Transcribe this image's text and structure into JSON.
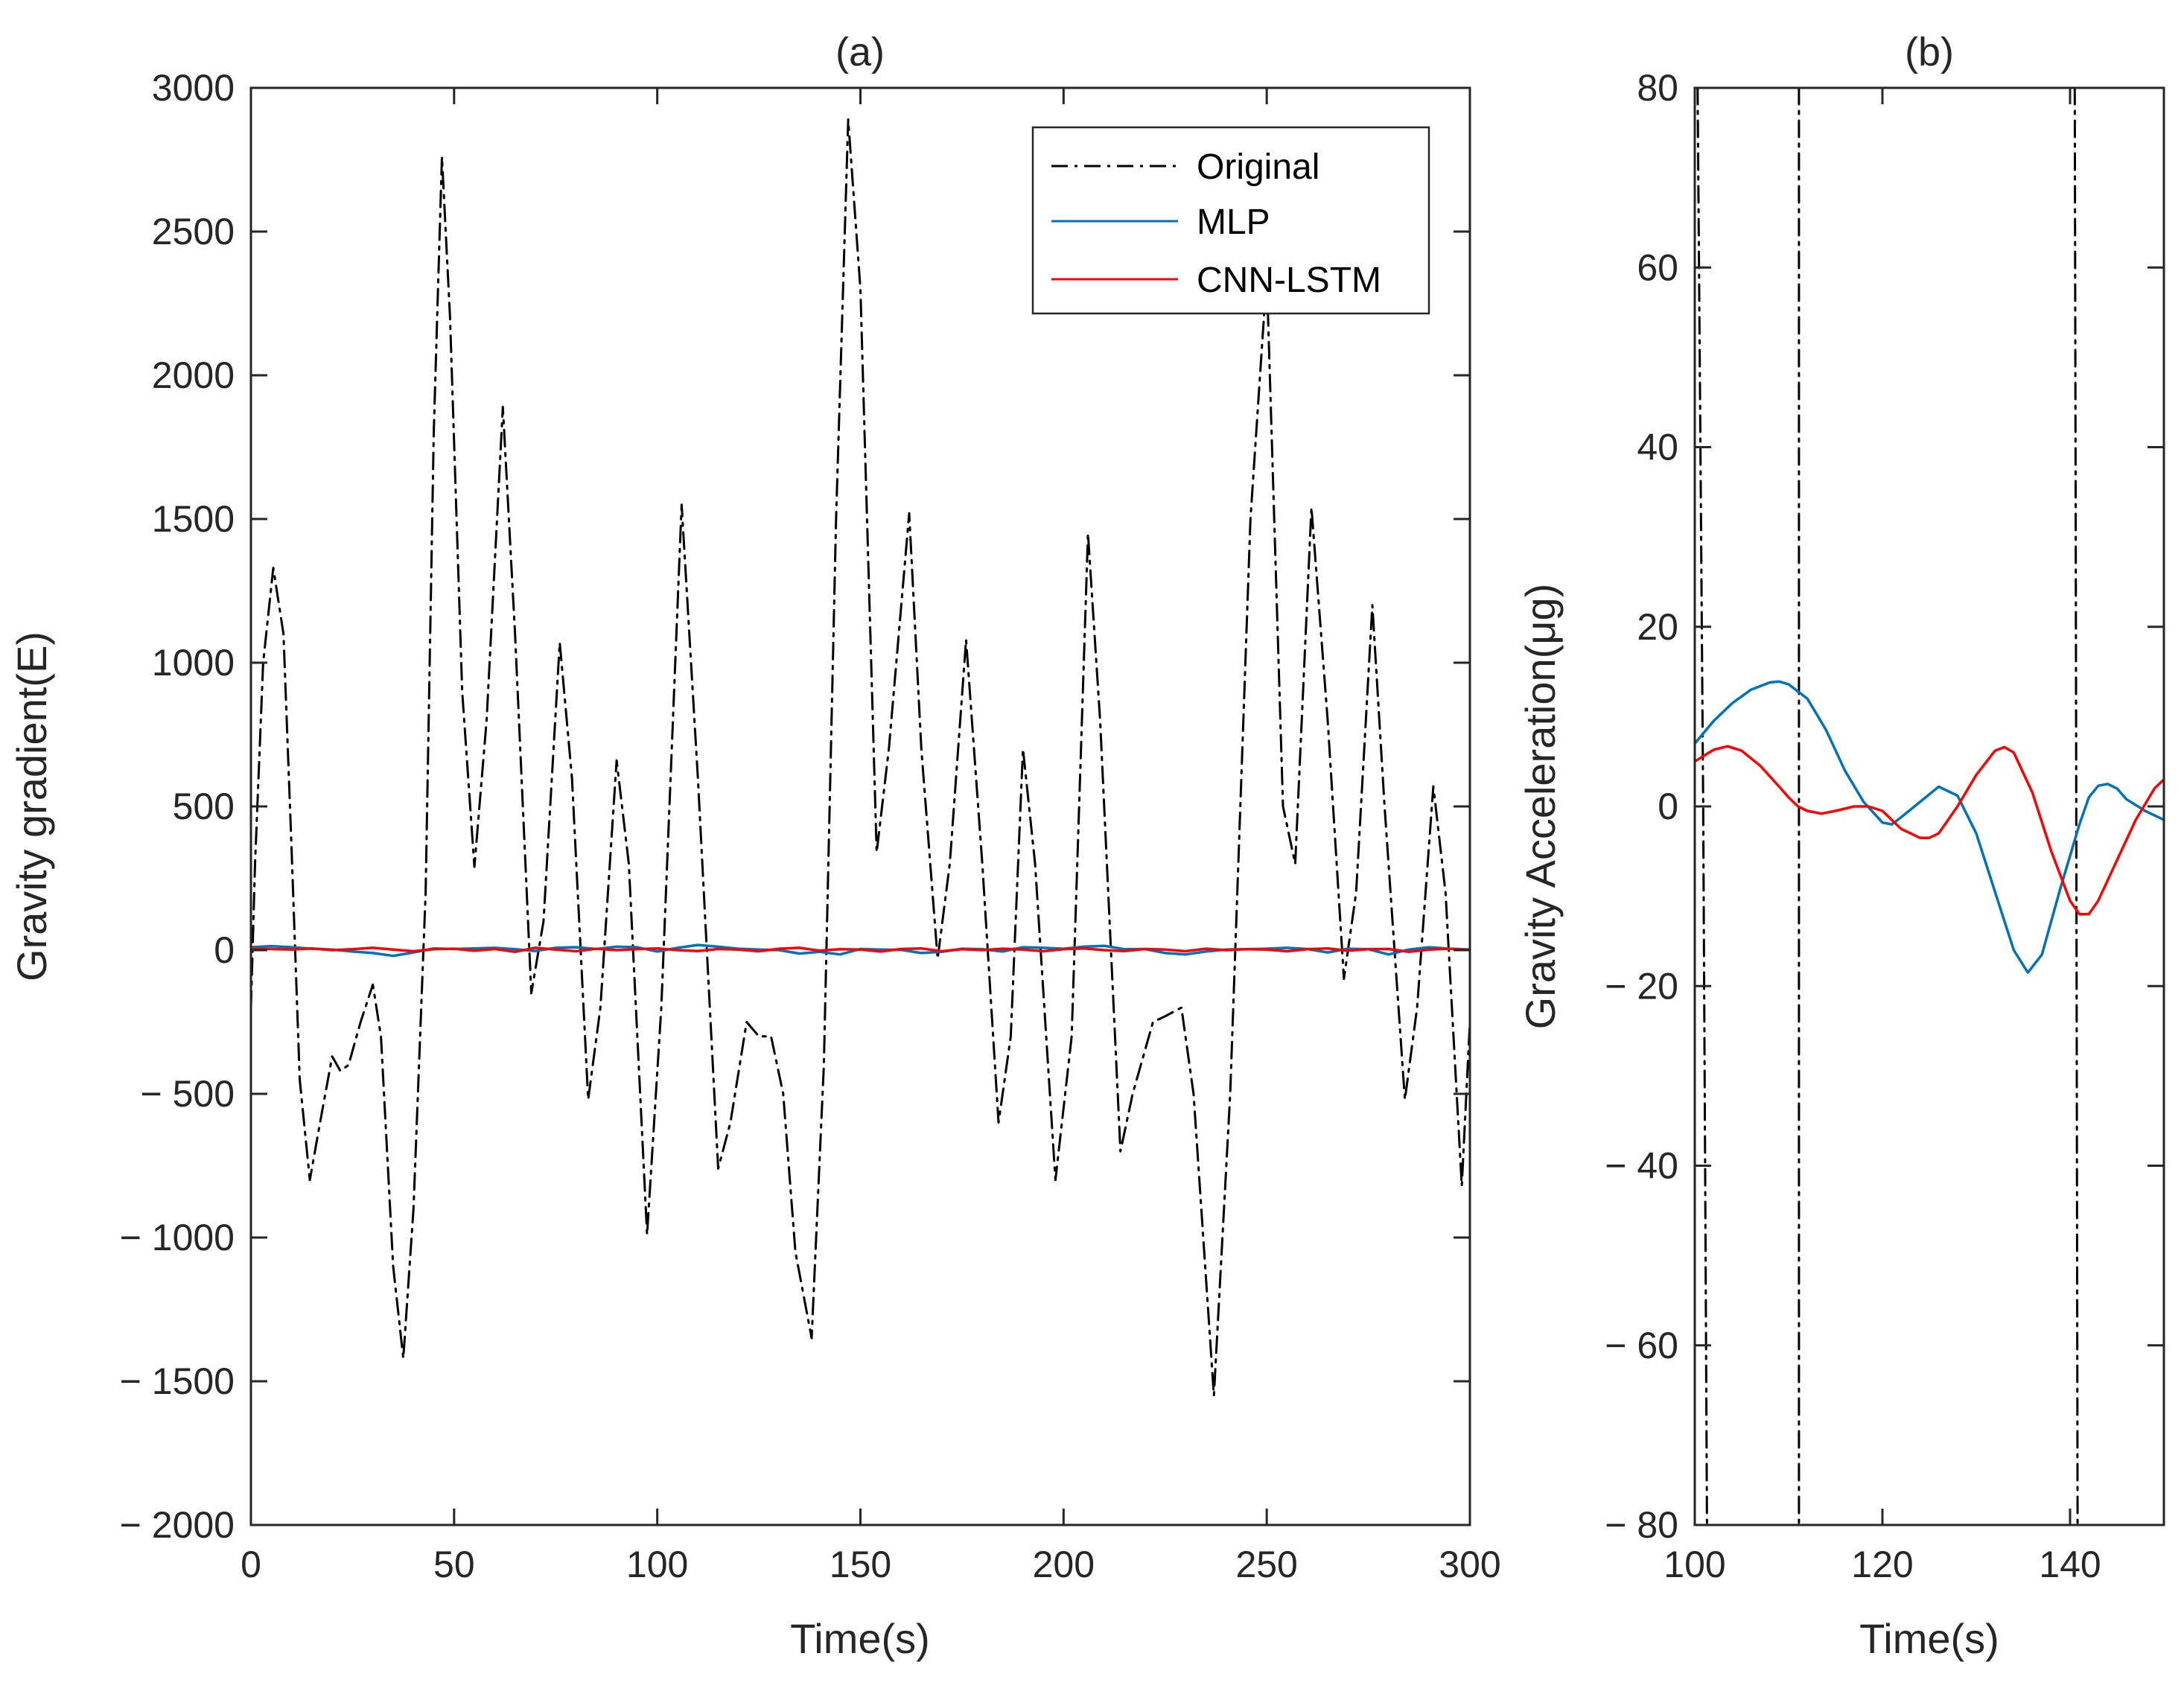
{
  "chart_data": [
    {
      "id": "a",
      "type": "line",
      "title": "(a)",
      "xlabel": "Time(s)",
      "ylabel": "Gravity gradient(E)",
      "xlim": [
        0,
        300
      ],
      "ylim": [
        -2000,
        3000
      ],
      "xticks": [
        0,
        50,
        100,
        150,
        200,
        250,
        300
      ],
      "xtick_labels": [
        "0",
        "50",
        "100",
        "150",
        "200",
        "250",
        "300"
      ],
      "yticks": [
        3000,
        2500,
        2000,
        1500,
        1000,
        500,
        0,
        -500,
        -1000,
        -1500,
        -2000
      ],
      "ytick_labels": [
        "3000",
        "2500",
        "2000",
        "1500",
        "1000",
        "500",
        "0",
        "− 500",
        "− 1000",
        "− 1500",
        "− 2000"
      ],
      "grid": false,
      "legend_position": "top-right",
      "series": [
        {
          "name": "Original",
          "color": "#000000",
          "style": "dashdot",
          "x": [
            0,
            1,
            3,
            5.5,
            8,
            10,
            12,
            14.5,
            17,
            20,
            22,
            24,
            27,
            30,
            32,
            35,
            37.5,
            40,
            43,
            45,
            47,
            49,
            52,
            55,
            58,
            62,
            65,
            69,
            72,
            76,
            79,
            83,
            86,
            90,
            93,
            97.5,
            101,
            106,
            110,
            115,
            118,
            122,
            125,
            128,
            131,
            134,
            138,
            141,
            144,
            147,
            150,
            154,
            157,
            162,
            165,
            169,
            172,
            176,
            180,
            184,
            187,
            190,
            193,
            198,
            202,
            206,
            209,
            214,
            217,
            222,
            225,
            229,
            232,
            237,
            241,
            246,
            250,
            254,
            257,
            261,
            265,
            269,
            272,
            276,
            279,
            284,
            287,
            291,
            294,
            298,
            300
          ],
          "y": [
            -200,
            300,
            1000,
            1330,
            1100,
            350,
            -450,
            -800,
            -600,
            -370,
            -420,
            -400,
            -250,
            -120,
            -300,
            -1100,
            -1420,
            -900,
            200,
            1800,
            2760,
            2200,
            900,
            290,
            800,
            1890,
            1100,
            -150,
            100,
            1070,
            600,
            -520,
            -200,
            660,
            300,
            -990,
            -200,
            1550,
            600,
            -760,
            -600,
            -250,
            -300,
            -300,
            -500,
            -1050,
            -1350,
            -400,
            1500,
            2890,
            2300,
            340,
            700,
            1520,
            700,
            -30,
            300,
            1080,
            300,
            -600,
            -300,
            700,
            300,
            -800,
            -300,
            1450,
            800,
            -700,
            -500,
            -250,
            -230,
            -200,
            -500,
            -1550,
            -500,
            1500,
            2350,
            500,
            300,
            1540,
            800,
            -100,
            200,
            1200,
            500,
            -520,
            -200,
            570,
            200,
            -820,
            -250
          ]
        },
        {
          "name": "MLP",
          "color": "#0072BD",
          "style": "solid",
          "x": [
            0,
            5,
            10,
            15,
            20,
            25,
            30,
            35,
            40,
            45,
            50,
            55,
            60,
            65,
            70,
            75,
            80,
            85,
            90,
            95,
            100,
            105,
            110,
            115,
            120,
            125,
            130,
            135,
            140,
            145,
            150,
            155,
            160,
            165,
            170,
            175,
            180,
            185,
            190,
            195,
            200,
            205,
            210,
            215,
            220,
            225,
            230,
            235,
            240,
            245,
            250,
            255,
            260,
            265,
            270,
            275,
            280,
            285,
            290,
            295,
            300
          ],
          "y": [
            10,
            14,
            10,
            5,
            2,
            -5,
            -10,
            -20,
            -8,
            6,
            4,
            6,
            8,
            3,
            -3,
            8,
            10,
            4,
            12,
            10,
            -5,
            8,
            18,
            12,
            5,
            2,
            0,
            -12,
            -6,
            -15,
            4,
            2,
            1,
            -10,
            -6,
            5,
            3,
            -5,
            10,
            8,
            5,
            12,
            15,
            3,
            4,
            -10,
            -15,
            -5,
            2,
            3,
            5,
            8,
            4,
            -8,
            5,
            3,
            -15,
            2,
            10,
            5,
            2
          ]
        },
        {
          "name": "CNN-LSTM",
          "color": "#FF0000",
          "style": "solid",
          "x": [
            0,
            5,
            10,
            15,
            20,
            25,
            30,
            35,
            40,
            45,
            50,
            55,
            60,
            65,
            70,
            75,
            80,
            85,
            90,
            95,
            100,
            105,
            110,
            115,
            120,
            125,
            130,
            135,
            140,
            145,
            150,
            155,
            160,
            165,
            170,
            175,
            180,
            185,
            190,
            195,
            200,
            205,
            210,
            215,
            220,
            225,
            230,
            235,
            240,
            245,
            250,
            255,
            260,
            265,
            270,
            275,
            280,
            285,
            290,
            295,
            300
          ],
          "y": [
            5,
            4,
            2,
            6,
            0,
            3,
            8,
            2,
            -4,
            3,
            5,
            -2,
            4,
            -6,
            8,
            2,
            -4,
            5,
            0,
            3,
            6,
            0,
            -3,
            4,
            2,
            -4,
            5,
            8,
            -2,
            3,
            2,
            -5,
            4,
            6,
            -4,
            3,
            0,
            5,
            2,
            -4,
            3,
            6,
            0,
            -3,
            4,
            2,
            -4,
            5,
            0,
            3,
            2,
            -4,
            3,
            6,
            -2,
            3,
            4,
            -6,
            2,
            5,
            1
          ]
        }
      ]
    },
    {
      "id": "b",
      "type": "line",
      "title": "(b)",
      "xlabel": "Time(s)",
      "ylabel": "Gravity Acceleration(μg)",
      "xlim": [
        100,
        150
      ],
      "ylim": [
        -80,
        80
      ],
      "xticks": [
        100,
        120,
        140
      ],
      "xtick_labels": [
        "100",
        "120",
        "140"
      ],
      "yticks": [
        80,
        60,
        40,
        20,
        0,
        -20,
        -40,
        -60,
        -80
      ],
      "ytick_labels": [
        "80",
        "60",
        "40",
        "20",
        "0",
        "− 20",
        "− 40",
        "− 60",
        "− 80"
      ],
      "grid": false,
      "series": [
        {
          "name": "Original",
          "color": "#000000",
          "style": "dashdot",
          "segments": [
            {
              "x": [
                100.3,
                100.6,
                100.9,
                101.1,
                101.3
              ],
              "y": [
                80,
                40,
                0,
                -40,
                -80
              ]
            },
            {
              "x": [
                111.1,
                111.1,
                111.1
              ],
              "y": [
                80,
                0,
                -80
              ]
            },
            {
              "x": [
                140.5,
                140.6,
                140.7,
                140.8
              ],
              "y": [
                80,
                30,
                -20,
                -80
              ]
            }
          ]
        },
        {
          "name": "MLP",
          "color": "#0072BD",
          "style": "solid",
          "x": [
            100,
            102,
            104,
            106,
            108,
            109,
            110,
            112,
            114,
            116,
            118,
            120,
            121,
            122,
            124,
            126,
            128,
            130,
            132,
            134,
            135.5,
            137,
            139,
            141,
            142,
            143,
            144,
            145,
            146,
            148,
            150
          ],
          "y": [
            7,
            9.5,
            11.5,
            13,
            13.8,
            13.9,
            13.6,
            12,
            8.5,
            4,
            0.5,
            -1.8,
            -2,
            -1.2,
            0.5,
            2.2,
            1.2,
            -3,
            -9.5,
            -16,
            -18.5,
            -16.5,
            -9,
            -2,
            1,
            2.3,
            2.5,
            2,
            0.8,
            -0.5,
            -1.5
          ]
        },
        {
          "name": "CNN-LSTM",
          "color": "#FF0000",
          "style": "solid",
          "x": [
            100,
            102,
            103.5,
            105,
            107,
            109,
            110,
            111,
            112,
            113.5,
            115,
            117,
            118.5,
            120,
            122,
            124,
            125,
            126,
            128,
            130,
            132,
            133,
            134,
            136,
            138,
            140,
            141,
            142,
            143,
            145,
            147,
            149,
            150
          ],
          "y": [
            5,
            6.3,
            6.7,
            6.2,
            4.5,
            2.2,
            1,
            0,
            -0.5,
            -0.8,
            -0.5,
            0,
            0,
            -0.5,
            -2.5,
            -3.5,
            -3.5,
            -3,
            0,
            3.5,
            6.2,
            6.6,
            6,
            1.5,
            -5,
            -10.5,
            -12,
            -12,
            -10.5,
            -6,
            -1.5,
            2,
            3
          ]
        }
      ]
    }
  ]
}
